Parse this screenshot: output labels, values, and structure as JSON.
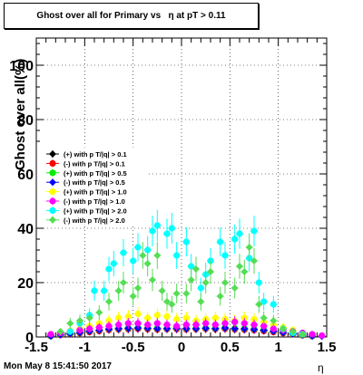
{
  "title": "Ghost over all for Primary vs   η at pT > 0.11",
  "timestamp": "Mon May  8 15:41:50 2017",
  "chart_data": {
    "type": "scatter",
    "xlabel": "η",
    "ylabel": "Ghost over all(%)",
    "xlim": [
      -1.5,
      1.5
    ],
    "ylim": [
      0,
      110
    ],
    "xticks": [
      "-1.5",
      "-1",
      "-0.5",
      "0",
      "0.5",
      "1",
      "1.5"
    ],
    "yticks": [
      "0",
      "20",
      "40",
      "60",
      "80",
      "100"
    ],
    "grid": true,
    "legend_position": "left-middle",
    "series": [
      {
        "name": "(+) with p T/|q| > 0.1",
        "color": "#000000",
        "marker": "diamond",
        "points": [
          [
            -1.35,
            0.3
          ],
          [
            -1.25,
            0.8
          ],
          [
            -1.15,
            1.2
          ],
          [
            -1.05,
            1.5
          ],
          [
            -0.95,
            2.0
          ],
          [
            -0.85,
            2.4
          ],
          [
            -0.75,
            2.8
          ],
          [
            -0.65,
            3.0
          ],
          [
            -0.55,
            3.0
          ],
          [
            -0.45,
            3.2
          ],
          [
            -0.35,
            3.1
          ],
          [
            -0.25,
            3.0
          ],
          [
            -0.15,
            3.0
          ],
          [
            -0.05,
            3.1
          ],
          [
            0.05,
            3.0
          ],
          [
            0.15,
            3.0
          ],
          [
            0.25,
            3.1
          ],
          [
            0.35,
            3.0
          ],
          [
            0.45,
            3.2
          ],
          [
            0.55,
            3.0
          ],
          [
            0.65,
            2.9
          ],
          [
            0.75,
            2.7
          ],
          [
            0.85,
            2.4
          ],
          [
            0.95,
            2.0
          ],
          [
            1.05,
            1.6
          ],
          [
            1.15,
            1.1
          ],
          [
            1.25,
            0.7
          ],
          [
            1.35,
            0.3
          ]
        ]
      },
      {
        "name": "(-) with p T/|q| > 0.1",
        "color": "#ff0000",
        "marker": "circle",
        "points": [
          [
            -1.35,
            0.3
          ],
          [
            -1.25,
            0.7
          ],
          [
            -1.15,
            1.1
          ],
          [
            -1.05,
            1.4
          ],
          [
            -0.95,
            1.8
          ],
          [
            -0.85,
            2.2
          ],
          [
            -0.75,
            2.6
          ],
          [
            -0.65,
            2.8
          ],
          [
            -0.55,
            2.9
          ],
          [
            -0.45,
            3.0
          ],
          [
            -0.35,
            2.9
          ],
          [
            -0.25,
            2.8
          ],
          [
            -0.15,
            2.9
          ],
          [
            -0.05,
            2.9
          ],
          [
            0.05,
            2.8
          ],
          [
            0.15,
            2.9
          ],
          [
            0.25,
            3.0
          ],
          [
            0.35,
            2.9
          ],
          [
            0.45,
            3.0
          ],
          [
            0.55,
            2.8
          ],
          [
            0.65,
            2.7
          ],
          [
            0.75,
            2.5
          ],
          [
            0.85,
            2.2
          ],
          [
            0.95,
            1.8
          ],
          [
            1.05,
            1.4
          ],
          [
            1.15,
            1.0
          ],
          [
            1.25,
            0.6
          ],
          [
            1.35,
            0.3
          ]
        ]
      },
      {
        "name": "(+) with p T/|q| > 0.5",
        "color": "#00ee00",
        "marker": "circle",
        "points": [
          [
            -1.35,
            0.4
          ],
          [
            -1.25,
            0.9
          ],
          [
            -1.15,
            1.3
          ],
          [
            -1.05,
            1.7
          ],
          [
            -0.95,
            2.2
          ],
          [
            -0.85,
            2.6
          ],
          [
            -0.75,
            3.0
          ],
          [
            -0.65,
            3.2
          ],
          [
            -0.55,
            3.3
          ],
          [
            -0.45,
            3.4
          ],
          [
            -0.35,
            3.3
          ],
          [
            -0.25,
            3.2
          ],
          [
            -0.15,
            3.2
          ],
          [
            -0.05,
            3.3
          ],
          [
            0.05,
            3.2
          ],
          [
            0.15,
            3.2
          ],
          [
            0.25,
            3.3
          ],
          [
            0.35,
            3.2
          ],
          [
            0.45,
            3.4
          ],
          [
            0.55,
            3.2
          ],
          [
            0.65,
            3.1
          ],
          [
            0.75,
            2.9
          ],
          [
            0.85,
            2.6
          ],
          [
            0.95,
            2.2
          ],
          [
            1.05,
            1.7
          ],
          [
            1.15,
            1.2
          ],
          [
            1.25,
            0.8
          ],
          [
            1.35,
            0.4
          ]
        ]
      },
      {
        "name": "(-) with p T/|q| > 0.5",
        "color": "#0000ff",
        "marker": "diamond",
        "points": [
          [
            -1.35,
            0.3
          ],
          [
            -1.25,
            0.8
          ],
          [
            -1.15,
            1.2
          ],
          [
            -1.05,
            1.6
          ],
          [
            -0.95,
            2.1
          ],
          [
            -0.85,
            2.5
          ],
          [
            -0.75,
            2.9
          ],
          [
            -0.65,
            3.1
          ],
          [
            -0.55,
            3.2
          ],
          [
            -0.45,
            3.3
          ],
          [
            -0.35,
            3.2
          ],
          [
            -0.25,
            3.1
          ],
          [
            -0.15,
            3.1
          ],
          [
            -0.05,
            3.2
          ],
          [
            0.05,
            3.1
          ],
          [
            0.15,
            3.1
          ],
          [
            0.25,
            3.2
          ],
          [
            0.35,
            3.1
          ],
          [
            0.45,
            3.3
          ],
          [
            0.55,
            3.1
          ],
          [
            0.65,
            3.0
          ],
          [
            0.75,
            2.8
          ],
          [
            0.85,
            2.5
          ],
          [
            0.95,
            2.1
          ],
          [
            1.05,
            1.6
          ],
          [
            1.15,
            1.1
          ],
          [
            1.25,
            0.7
          ],
          [
            1.35,
            0.3
          ],
          [
            1.45,
            0.2
          ]
        ]
      },
      {
        "name": "(+) with p T/|q| > 1.0",
        "color": "#ffff00",
        "marker": "circle",
        "points": [
          [
            -1.25,
            1.5
          ],
          [
            -1.15,
            2.2
          ],
          [
            -1.05,
            3.0
          ],
          [
            -0.95,
            4.0
          ],
          [
            -0.85,
            5.0
          ],
          [
            -0.75,
            6.0
          ],
          [
            -0.65,
            7.0
          ],
          [
            -0.55,
            7.5
          ],
          [
            -0.45,
            8.5
          ],
          [
            -0.35,
            7.0
          ],
          [
            -0.25,
            8.0
          ],
          [
            -0.15,
            7.5
          ],
          [
            -0.05,
            6.5
          ],
          [
            0.05,
            7.0
          ],
          [
            0.15,
            6.0
          ],
          [
            0.25,
            6.5
          ],
          [
            0.35,
            7.0
          ],
          [
            0.45,
            6.5
          ],
          [
            0.55,
            6.0
          ],
          [
            0.65,
            7.0
          ],
          [
            0.75,
            6.5
          ],
          [
            0.85,
            5.5
          ],
          [
            0.95,
            4.5
          ],
          [
            1.05,
            3.5
          ],
          [
            1.15,
            2.5
          ],
          [
            1.25,
            1.5
          ],
          [
            1.35,
            1.0
          ]
        ]
      },
      {
        "name": "(-) with p T/|q| > 1.0",
        "color": "#ff00ff",
        "marker": "circle",
        "points": [
          [
            -1.35,
            1.0
          ],
          [
            -1.25,
            1.5
          ],
          [
            -1.15,
            2.0
          ],
          [
            -1.05,
            2.5
          ],
          [
            -0.95,
            3.0
          ],
          [
            -0.85,
            3.5
          ],
          [
            -0.75,
            4.0
          ],
          [
            -0.65,
            4.5
          ],
          [
            -0.55,
            5.0
          ],
          [
            -0.45,
            5.0
          ],
          [
            -0.35,
            4.5
          ],
          [
            -0.25,
            5.0
          ],
          [
            -0.15,
            4.5
          ],
          [
            -0.05,
            4.0
          ],
          [
            0.05,
            4.5
          ],
          [
            0.15,
            4.5
          ],
          [
            0.25,
            5.0
          ],
          [
            0.35,
            4.5
          ],
          [
            0.45,
            5.0
          ],
          [
            0.55,
            5.5
          ],
          [
            0.65,
            5.0
          ],
          [
            0.75,
            4.5
          ],
          [
            0.85,
            4.0
          ],
          [
            0.95,
            3.0
          ],
          [
            1.05,
            2.5
          ],
          [
            1.15,
            2.0
          ],
          [
            1.25,
            1.5
          ],
          [
            1.35,
            1.0
          ],
          [
            1.45,
            0.5
          ]
        ]
      },
      {
        "name": "(+) with p T/|q| > 2.0",
        "color": "#00ffff",
        "marker": "circle",
        "points": [
          [
            -1.15,
            2
          ],
          [
            -1.05,
            5
          ],
          [
            -0.95,
            8
          ],
          [
            -0.9,
            17
          ],
          [
            -0.8,
            17
          ],
          [
            -0.75,
            25
          ],
          [
            -0.7,
            27
          ],
          [
            -0.6,
            31
          ],
          [
            -0.5,
            28
          ],
          [
            -0.45,
            33
          ],
          [
            -0.35,
            32
          ],
          [
            -0.3,
            39
          ],
          [
            -0.25,
            41
          ],
          [
            -0.15,
            38
          ],
          [
            -0.1,
            40
          ],
          [
            -0.05,
            30
          ],
          [
            0.05,
            35
          ],
          [
            0.1,
            26
          ],
          [
            0.2,
            18
          ],
          [
            0.25,
            23
          ],
          [
            0.3,
            28
          ],
          [
            0.4,
            35
          ],
          [
            0.45,
            30
          ],
          [
            0.55,
            36
          ],
          [
            0.6,
            38
          ],
          [
            0.7,
            29
          ],
          [
            0.75,
            39
          ],
          [
            0.8,
            20
          ],
          [
            0.85,
            13
          ],
          [
            0.95,
            12
          ],
          [
            1.05,
            3
          ],
          [
            1.15,
            1.5
          ],
          [
            1.25,
            1
          ]
        ]
      },
      {
        "name": "(-) with p T/|q| > 2.0",
        "color": "#55dd55",
        "marker": "diamond",
        "points": [
          [
            -1.25,
            2
          ],
          [
            -1.15,
            5
          ],
          [
            -1.05,
            6
          ],
          [
            -0.95,
            7
          ],
          [
            -0.85,
            9
          ],
          [
            -0.75,
            13
          ],
          [
            -0.65,
            17
          ],
          [
            -0.6,
            20
          ],
          [
            -0.5,
            15
          ],
          [
            -0.45,
            18
          ],
          [
            -0.4,
            30
          ],
          [
            -0.35,
            27
          ],
          [
            -0.3,
            21
          ],
          [
            -0.25,
            30
          ],
          [
            -0.2,
            17
          ],
          [
            -0.15,
            13
          ],
          [
            -0.1,
            12
          ],
          [
            -0.05,
            16
          ],
          [
            0.05,
            16
          ],
          [
            0.1,
            21
          ],
          [
            0.15,
            25
          ],
          [
            0.2,
            13
          ],
          [
            0.25,
            20
          ],
          [
            0.3,
            24
          ],
          [
            0.4,
            15
          ],
          [
            0.45,
            20
          ],
          [
            0.55,
            18
          ],
          [
            0.6,
            26
          ],
          [
            0.65,
            24
          ],
          [
            0.7,
            33
          ],
          [
            0.75,
            28
          ],
          [
            0.8,
            12
          ],
          [
            0.85,
            7
          ],
          [
            0.95,
            6
          ],
          [
            1.05,
            3
          ],
          [
            1.15,
            2
          ],
          [
            1.25,
            1
          ]
        ]
      }
    ]
  }
}
